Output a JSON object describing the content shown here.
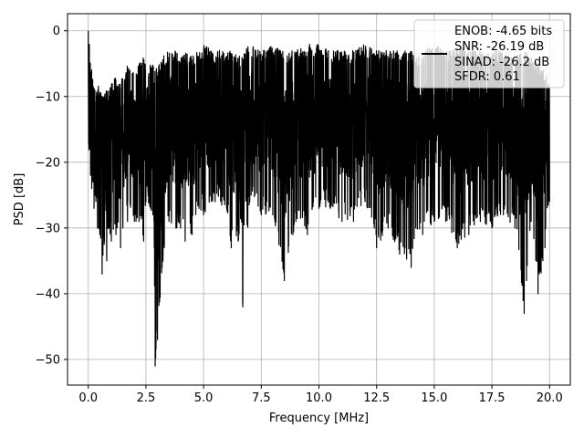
{
  "chart_data": {
    "type": "line",
    "xlabel": "Frequency [MHz]",
    "ylabel": "PSD [dB]",
    "xlim": [
      -0.9,
      20.9
    ],
    "ylim": [
      -53.9,
      2.6
    ],
    "xticks": [
      0.0,
      2.5,
      5.0,
      7.5,
      10.0,
      12.5,
      15.0,
      17.5,
      20.0
    ],
    "xtick_labels": [
      "0.0",
      "2.5",
      "5.0",
      "7.5",
      "10.0",
      "12.5",
      "15.0",
      "17.5",
      "20.0"
    ],
    "yticks": [
      0,
      -10,
      -20,
      -30,
      -40,
      -50
    ],
    "ytick_labels": [
      "0",
      "−10",
      "−20",
      "−30",
      "−40",
      "−50"
    ],
    "grid": true,
    "legend": {
      "placement": "top-right",
      "lines": [
        "ENOB: -4.65 bits",
        "SNR: -26.19 dB",
        "SINAD: -26.2 dB",
        "SFDR: 0.61"
      ]
    },
    "series": [
      {
        "color": "#000000",
        "x": [
          0.0,
          0.05,
          0.1,
          0.15,
          0.2,
          0.25,
          0.3,
          0.4,
          0.5,
          0.6,
          0.7,
          0.8,
          0.9,
          1.0,
          1.2,
          1.4,
          1.5,
          1.7,
          2.0,
          2.2,
          2.4,
          2.5,
          2.7,
          2.8,
          2.85,
          2.9,
          3.0,
          3.2,
          3.5,
          3.8,
          4.0,
          4.2,
          4.5,
          4.8,
          5.0,
          5.5,
          6.0,
          6.2,
          6.5,
          6.7,
          7.0,
          7.5,
          8.0,
          8.5,
          9.0,
          9.5,
          10.0,
          10.5,
          11.0,
          11.5,
          12.0,
          12.4,
          12.5,
          13.0,
          13.5,
          14.0,
          14.2,
          14.5,
          15.0,
          15.5,
          16.0,
          16.5,
          17.0,
          17.5,
          18.0,
          18.5,
          18.9,
          19.0,
          19.2,
          19.5,
          19.8,
          20.0
        ],
        "hi": [
          0.0,
          -2,
          -4,
          -6,
          -7,
          -8,
          -9,
          -8,
          -9,
          -10,
          -9,
          -8,
          -9,
          -8,
          -7,
          -8,
          -6,
          -5,
          -6,
          -5,
          -4,
          -5,
          -5,
          -5,
          -6,
          -6,
          -5,
          -4,
          -3,
          -3,
          -4,
          -3,
          -4,
          -3,
          -2,
          -3,
          -3,
          -3,
          -4,
          -3,
          -2,
          -3,
          -2,
          -3,
          -3,
          -2,
          -2,
          -3,
          -3,
          -3,
          -2,
          -3,
          -3,
          -3,
          -3,
          -3,
          -4,
          -3,
          -2,
          -3,
          -2,
          -3,
          -3,
          -3,
          -3,
          -4,
          -3,
          -3,
          -4,
          -5,
          -6,
          -8
        ],
        "lo": [
          -21,
          -18,
          -22,
          -24,
          -23,
          -27,
          -25,
          -30,
          -31,
          -37,
          -32,
          -35,
          -30,
          -32,
          -31,
          -33,
          -30,
          -29,
          -29,
          -29,
          -32,
          -26,
          -27,
          -28,
          -29,
          -51,
          -47,
          -36,
          -29,
          -30,
          -30,
          -32,
          -31,
          -27,
          -28,
          -26,
          -27,
          -33,
          -32,
          -42,
          -26,
          -28,
          -28,
          -38,
          -29,
          -31,
          -27,
          -27,
          -29,
          -29,
          -26,
          -30,
          -33,
          -30,
          -34,
          -36,
          -30,
          -31,
          -29,
          -29,
          -33,
          -31,
          -29,
          -30,
          -28,
          -30,
          -43,
          -38,
          -29,
          -40,
          -33,
          -26
        ]
      }
    ]
  }
}
